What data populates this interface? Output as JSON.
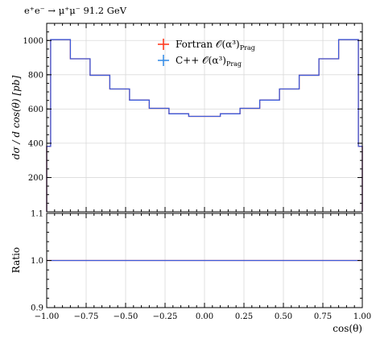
{
  "chart_data": {
    "type": "line",
    "title": "e⁺e⁻ → μ⁺μ⁻ 91.2 GeV",
    "xlabel": "cos(θ)",
    "ylabel_top": "dσ / d cos(θ) [pb]",
    "ylabel_ratio": "Ratio",
    "xlim": [
      -1.0,
      1.0
    ],
    "ylim_top": [
      0,
      1100
    ],
    "ylim_ratio": [
      0.9,
      1.1
    ],
    "grid": true,
    "legend_position": "top-center",
    "x_ticks": [
      "−1.00",
      "−0.75",
      "−0.50",
      "−0.25",
      "0.00",
      "0.25",
      "0.50",
      "0.75",
      "1.00"
    ],
    "x_tick_values": [
      -1.0,
      -0.75,
      -0.5,
      -0.25,
      0.0,
      0.25,
      0.5,
      0.75,
      1.0
    ],
    "y_ticks_top": [
      "200",
      "400",
      "600",
      "800",
      "1000"
    ],
    "y_tick_values_top": [
      200,
      400,
      600,
      800,
      1000
    ],
    "y_ticks_ratio": [
      "0.9",
      "1.0",
      "1.1"
    ],
    "y_tick_values_ratio": [
      0.9,
      1.0,
      1.1
    ],
    "bin_edges": [
      -1.0,
      -0.975,
      -0.85,
      -0.725,
      -0.6,
      -0.475,
      -0.35,
      -0.225,
      -0.1,
      0.1,
      0.225,
      0.35,
      0.475,
      0.6,
      0.725,
      0.85,
      0.975,
      1.0
    ],
    "series": [
      {
        "name": "Fortran 𝒪(α³)",
        "name_sub": "Prag",
        "color": "#ff3b1f",
        "values": [
          382,
          1005,
          893,
          797,
          717,
          652,
          604,
          572,
          557,
          572,
          604,
          652,
          717,
          797,
          893,
          1005,
          382
        ],
        "ratio": [
          1,
          1,
          1,
          1,
          1,
          1,
          1,
          1,
          1,
          1,
          1,
          1,
          1,
          1,
          1,
          1,
          1
        ]
      },
      {
        "name": "C++ 𝒪(α³)",
        "name_sub": "Prag",
        "color": "#3b5bdb",
        "values": [
          382,
          1005,
          893,
          797,
          717,
          652,
          604,
          572,
          557,
          572,
          604,
          652,
          717,
          797,
          893,
          1005,
          382
        ],
        "ratio": [
          1,
          1,
          1,
          1,
          1,
          1,
          1,
          1,
          1,
          1,
          1,
          1,
          1,
          1,
          1,
          1,
          1
        ]
      }
    ],
    "legend_marker_colors": [
      "#ff3b1f",
      "#3b8fe8"
    ]
  }
}
